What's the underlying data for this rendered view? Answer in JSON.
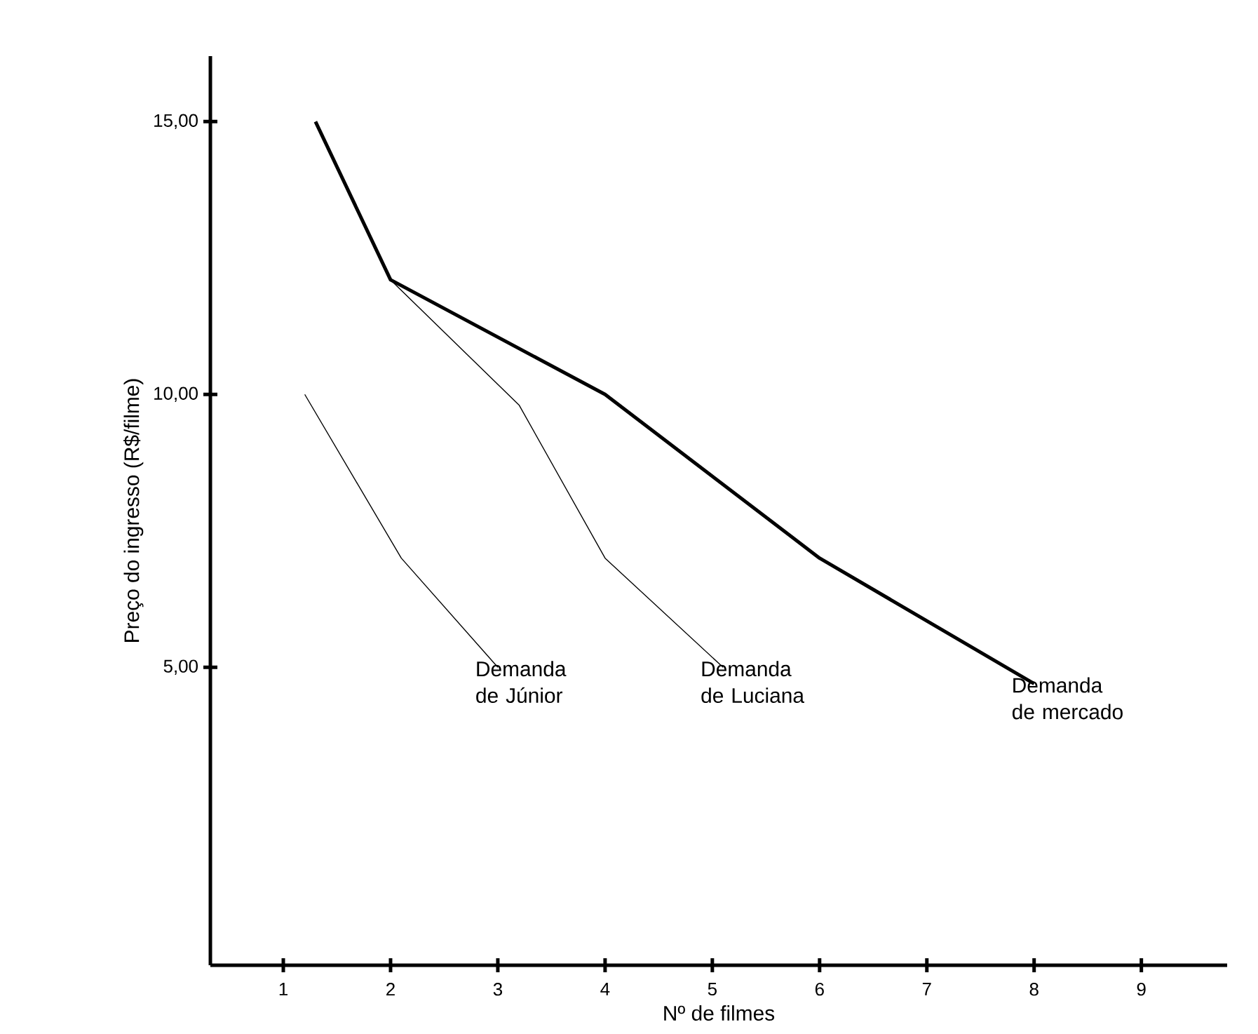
{
  "chart_data": {
    "type": "line",
    "xlabel": "Nº de filmes",
    "ylabel": "Preço do ingresso (R$/filme)",
    "xlim": [
      0.32,
      9.8
    ],
    "ylim": [
      -0.46,
      16.2
    ],
    "xticks": [
      1,
      2,
      3,
      4,
      5,
      6,
      7,
      8,
      9
    ],
    "yticks": [
      {
        "value": 5,
        "label": "5,00"
      },
      {
        "value": 10,
        "label": "10,00"
      },
      {
        "value": 15,
        "label": "15,00"
      }
    ],
    "series": [
      {
        "name": "Demanda de Júnior",
        "color": "#000000",
        "x": [
          1.2,
          2.1,
          3.0
        ],
        "values": [
          10.0,
          7.0,
          5.0
        ]
      },
      {
        "name": "Demanda de Luciana",
        "color": "#000000",
        "x": [
          2.0,
          3.2,
          4.0,
          5.1
        ],
        "values": [
          12.1,
          9.8,
          7.0,
          5.0
        ]
      },
      {
        "name": "Demanda de mercado",
        "color": "#000000",
        "x": [
          1.3,
          2.0,
          4.0,
          6.0,
          8.0
        ],
        "values": [
          15.0,
          12.1,
          10.0,
          7.0,
          4.7
        ]
      }
    ],
    "grid": false,
    "legend": false,
    "marker": "none",
    "line_style": "solid"
  }
}
